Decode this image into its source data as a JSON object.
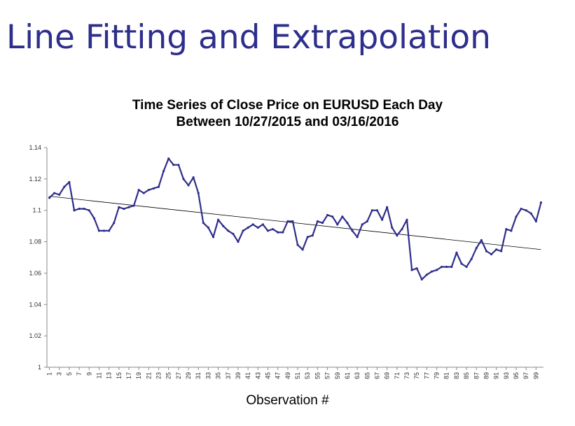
{
  "slide_title": "Line Fitting and Extrapolation",
  "chart_data": {
    "type": "line",
    "title": [
      "Time Series of Close Price on EURUSD Each Day",
      "Between 10/27/2015 and 03/16/2016"
    ],
    "xlabel": "Observation #",
    "ylabel": "",
    "ylim": [
      1,
      1.14
    ],
    "yticks": [
      "1",
      "1.02",
      "1.04",
      "1.06",
      "1.08",
      "1.1",
      "1.12",
      "1.14"
    ],
    "xticks": [
      "1",
      "3",
      "5",
      "7",
      "9",
      "11",
      "13",
      "15",
      "17",
      "19",
      "21",
      "23",
      "25",
      "27",
      "29",
      "31",
      "33",
      "35",
      "37",
      "39",
      "41",
      "43",
      "45",
      "47",
      "49",
      "51",
      "53",
      "55",
      "57",
      "59",
      "61",
      "63",
      "65",
      "67",
      "69",
      "71",
      "73",
      "75",
      "77",
      "79",
      "81",
      "83",
      "85",
      "87",
      "89",
      "91",
      "93",
      "95",
      "97",
      "99"
    ],
    "x": [
      1,
      2,
      3,
      4,
      5,
      6,
      7,
      8,
      9,
      10,
      11,
      12,
      13,
      14,
      15,
      16,
      17,
      18,
      19,
      20,
      21,
      22,
      23,
      24,
      25,
      26,
      27,
      28,
      29,
      30,
      31,
      32,
      33,
      34,
      35,
      36,
      37,
      38,
      39,
      40,
      41,
      42,
      43,
      44,
      45,
      46,
      47,
      48,
      49,
      50,
      51,
      52,
      53,
      54,
      55,
      56,
      57,
      58,
      59,
      60,
      61,
      62,
      63,
      64,
      65,
      66,
      67,
      68,
      69,
      70,
      71,
      72,
      73,
      74,
      75,
      76,
      77,
      78,
      79,
      80,
      81,
      82,
      83,
      84,
      85,
      86,
      87,
      88,
      89,
      90,
      91,
      92,
      93,
      94,
      95,
      96,
      97,
      98,
      99,
      100
    ],
    "series": [
      {
        "color": "#2e2e8c",
        "values": [
          1.108,
          1.111,
          1.11,
          1.115,
          1.118,
          1.1,
          1.101,
          1.101,
          1.1,
          1.095,
          1.087,
          1.087,
          1.087,
          1.092,
          1.102,
          1.101,
          1.102,
          1.103,
          1.113,
          1.111,
          1.113,
          1.114,
          1.115,
          1.125,
          1.133,
          1.129,
          1.129,
          1.12,
          1.116,
          1.121,
          1.111,
          1.092,
          1.089,
          1.083,
          1.094,
          1.09,
          1.087,
          1.085,
          1.08,
          1.087,
          1.089,
          1.091,
          1.089,
          1.091,
          1.087,
          1.088,
          1.086,
          1.086,
          1.093,
          1.093,
          1.078,
          1.075,
          1.083,
          1.084,
          1.093,
          1.092,
          1.097,
          1.096,
          1.091,
          1.096,
          1.092,
          1.087,
          1.083,
          1.091,
          1.093,
          1.1,
          1.1,
          1.094,
          1.102,
          1.089,
          1.084,
          1.088,
          1.094,
          1.062,
          1.063,
          1.056,
          1.059,
          1.061,
          1.062,
          1.064,
          1.064,
          1.064,
          1.073,
          1.066,
          1.064,
          1.069,
          1.076,
          1.081,
          1.074,
          1.072,
          1.075,
          1.074,
          1.088,
          1.087,
          1.096,
          1.101,
          1.1,
          1.098,
          1.093,
          1.105
        ]
      }
    ],
    "trendline": {
      "type": "linear",
      "start": 1.109,
      "end": 1.075,
      "color": "#000000"
    },
    "grid": false,
    "legend": "none"
  }
}
